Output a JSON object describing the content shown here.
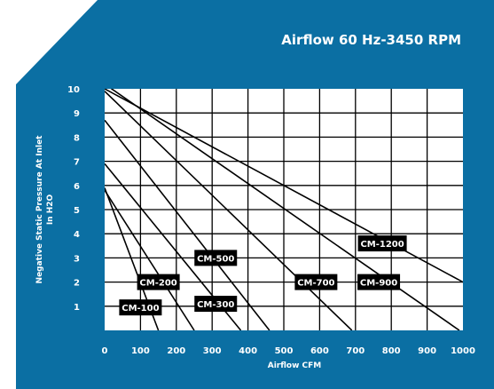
{
  "colors": {
    "panel": "#0b6fa3",
    "plot": "#ffffff",
    "grid": "#000000",
    "text": "#ffffff",
    "label_box": "#000000"
  },
  "chart_data": {
    "type": "line",
    "title": "Airflow 60 Hz-3450 RPM",
    "xlabel": "Airflow CFM",
    "ylabel_line1": "Negative Static Pressure At Inlet",
    "ylabel_line2": "In H2O",
    "xlim": [
      0,
      1000
    ],
    "ylim": [
      0,
      10
    ],
    "x_ticks": [
      "0",
      "100",
      "200",
      "300",
      "400",
      "500",
      "600",
      "700",
      "800",
      "900",
      "1000"
    ],
    "y_ticks": [
      "1",
      "2",
      "3",
      "4",
      "5",
      "6",
      "7",
      "8",
      "9",
      "10"
    ],
    "grid": true,
    "series": [
      {
        "name": "CM-100",
        "x": [
          0,
          150
        ],
        "y": [
          5.9,
          0
        ]
      },
      {
        "name": "CM-200",
        "x": [
          0,
          250
        ],
        "y": [
          5.8,
          0
        ]
      },
      {
        "name": "CM-300",
        "x": [
          0,
          380
        ],
        "y": [
          6.9,
          0
        ]
      },
      {
        "name": "CM-500",
        "x": [
          0,
          460
        ],
        "y": [
          8.7,
          0
        ]
      },
      {
        "name": "CM-700",
        "x": [
          0,
          690
        ],
        "y": [
          9.9,
          0
        ]
      },
      {
        "name": "CM-900",
        "x": [
          0,
          990
        ],
        "y": [
          10.2,
          0
        ]
      },
      {
        "name": "CM-1200",
        "x": [
          0,
          1000
        ],
        "y": [
          10,
          2
        ]
      }
    ],
    "series_labels": [
      {
        "name": "CM-100",
        "x": 100,
        "y": 0.95
      },
      {
        "name": "CM-200",
        "x": 150,
        "y": 2.0
      },
      {
        "name": "CM-300",
        "x": 310,
        "y": 1.1
      },
      {
        "name": "CM-500",
        "x": 310,
        "y": 3.0
      },
      {
        "name": "CM-700",
        "x": 590,
        "y": 2.0
      },
      {
        "name": "CM-900",
        "x": 765,
        "y": 2.0
      },
      {
        "name": "CM-1200",
        "x": 775,
        "y": 3.6
      }
    ]
  }
}
